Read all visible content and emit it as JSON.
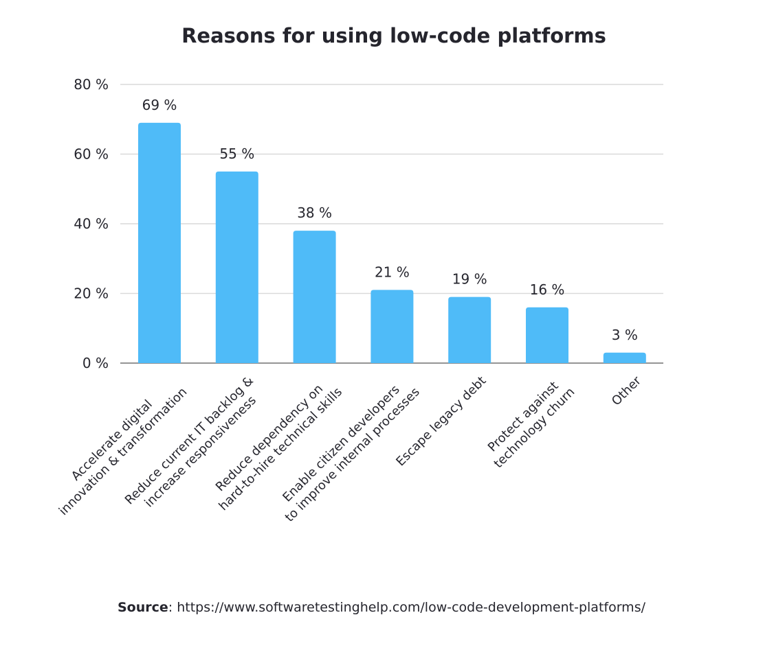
{
  "chart_data": {
    "type": "bar",
    "title": "Reasons for using low-code platforms",
    "categories": [
      [
        "Accelerate digital",
        "innovation & transformation"
      ],
      [
        "Reduce current IT backlog &",
        "increase responsiveness"
      ],
      [
        "Reduce dependency on",
        "hard-to-hire technical skills"
      ],
      [
        "Enable citizen developers",
        "to improve internal processes"
      ],
      [
        "Escape legacy debt"
      ],
      [
        "Protect against",
        "technology churn"
      ],
      [
        "Other"
      ]
    ],
    "values": [
      69,
      55,
      38,
      21,
      19,
      16,
      3
    ],
    "data_labels": [
      "69 %",
      "55 %",
      "38 %",
      "21 %",
      "19 %",
      "16 %",
      "3 %"
    ],
    "ylim": [
      0,
      80
    ],
    "yticks": [
      0,
      20,
      40,
      60,
      80
    ],
    "ytick_labels": [
      "0 %",
      "20 %",
      "40 %",
      "60 %",
      "80 %"
    ],
    "xlabel": "",
    "ylabel": "",
    "grid": true,
    "bar_color": "#4fbbf8",
    "grid_color": "#d9d9d9"
  },
  "source": {
    "label": "Source",
    "text": ": https://www.softwaretestinghelp.com/low-code-development-platforms/"
  }
}
